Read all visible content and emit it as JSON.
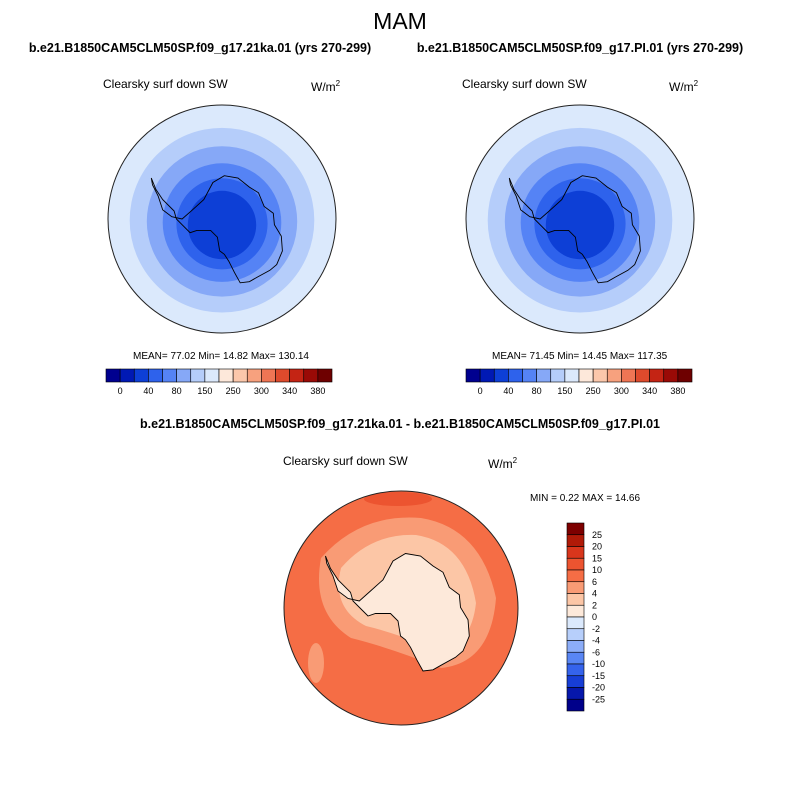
{
  "page": {
    "season_title": "MAM"
  },
  "chart_data": [
    {
      "type": "heatmap",
      "projection": "south-polar-stereographic",
      "title": "b.e21.B1850CAM5CLM50SP.f09_g17.21ka.01 (yrs 270-299)",
      "variable": "Clearsky surf down SW",
      "units_base": "W/m",
      "units_exp": "2",
      "stats_text": "MEAN=  77.02  Min=  14.82  Max= 130.14",
      "stats": {
        "mean": 77.02,
        "min": 14.82,
        "max": 130.14
      },
      "colorbar": {
        "orientation": "horizontal",
        "levels": [
          0,
          20,
          40,
          60,
          80,
          100,
          150,
          200,
          250,
          275,
          300,
          320,
          340,
          360,
          380
        ],
        "tick_labels": [
          "0",
          "40",
          "80",
          "150",
          "250",
          "300",
          "340",
          "380"
        ],
        "colors": [
          "#00008f",
          "#0019b4",
          "#0d3fd6",
          "#2e62ec",
          "#5583f5",
          "#86a8f7",
          "#b5cdfa",
          "#dbe9fc",
          "#fde8da",
          "#fbc7ab",
          "#f7a17e",
          "#ef7554",
          "#de4a2c",
          "#c42414",
          "#9a0a06",
          "#6e0000"
        ]
      },
      "rings": [
        {
          "level_min": 20,
          "level_max": 40
        },
        {
          "level_min": 40,
          "level_max": 60
        },
        {
          "level_min": 60,
          "level_max": 80
        },
        {
          "level_min": 80,
          "level_max": 100
        },
        {
          "level_min": 100,
          "level_max": 150
        },
        {
          "level_min": 150,
          "level_max": 200
        }
      ]
    },
    {
      "type": "heatmap",
      "projection": "south-polar-stereographic",
      "title": "b.e21.B1850CAM5CLM50SP.f09_g17.PI.01 (yrs 270-299)",
      "variable": "Clearsky surf down SW",
      "units_base": "W/m",
      "units_exp": "2",
      "stats_text": "MEAN=  71.45  Min=  14.45  Max= 117.35",
      "stats": {
        "mean": 71.45,
        "min": 14.45,
        "max": 117.35
      },
      "colorbar": {
        "orientation": "horizontal",
        "levels": [
          0,
          20,
          40,
          60,
          80,
          100,
          150,
          200,
          250,
          275,
          300,
          320,
          340,
          360,
          380
        ],
        "tick_labels": [
          "0",
          "40",
          "80",
          "150",
          "250",
          "300",
          "340",
          "380"
        ],
        "colors": [
          "#00008f",
          "#0019b4",
          "#0d3fd6",
          "#2e62ec",
          "#5583f5",
          "#86a8f7",
          "#b5cdfa",
          "#dbe9fc",
          "#fde8da",
          "#fbc7ab",
          "#f7a17e",
          "#ef7554",
          "#de4a2c",
          "#c42414",
          "#9a0a06",
          "#6e0000"
        ]
      },
      "rings": [
        {
          "level_min": 20,
          "level_max": 40
        },
        {
          "level_min": 40,
          "level_max": 60
        },
        {
          "level_min": 60,
          "level_max": 80
        },
        {
          "level_min": 80,
          "level_max": 100
        },
        {
          "level_min": 100,
          "level_max": 150
        },
        {
          "level_min": 150,
          "level_max": 200
        }
      ]
    },
    {
      "type": "heatmap",
      "projection": "south-polar-stereographic",
      "title": "b.e21.B1850CAM5CLM50SP.f09_g17.21ka.01 - b.e21.B1850CAM5CLM50SP.f09_g17.PI.01",
      "variable": "Clearsky surf down SW",
      "units_base": "W/m",
      "units_exp": "2",
      "stats_text": "MIN =   0.22 MAX =  14.66",
      "stats": {
        "min": 0.22,
        "max": 14.66
      },
      "colorbar": {
        "orientation": "vertical",
        "levels": [
          25,
          20,
          15,
          10,
          6,
          4,
          2,
          0,
          -2,
          -4,
          -6,
          -10,
          -15,
          -20,
          -25
        ],
        "tick_labels": [
          "25",
          "20",
          "15",
          "10",
          "6",
          "4",
          "2",
          "0",
          "-2",
          "-4",
          "-6",
          "-10",
          "-15",
          "-20",
          "-25"
        ],
        "colors": [
          "#7d0000",
          "#b01a08",
          "#d8361c",
          "#ec5430",
          "#f56d45",
          "#f99b75",
          "#fcc6a6",
          "#fde9da",
          "#dbe9fc",
          "#b7cffb",
          "#8cadf8",
          "#5986f4",
          "#3563ec",
          "#173ed6",
          "#0617ab",
          "#00008a"
        ]
      }
    }
  ]
}
